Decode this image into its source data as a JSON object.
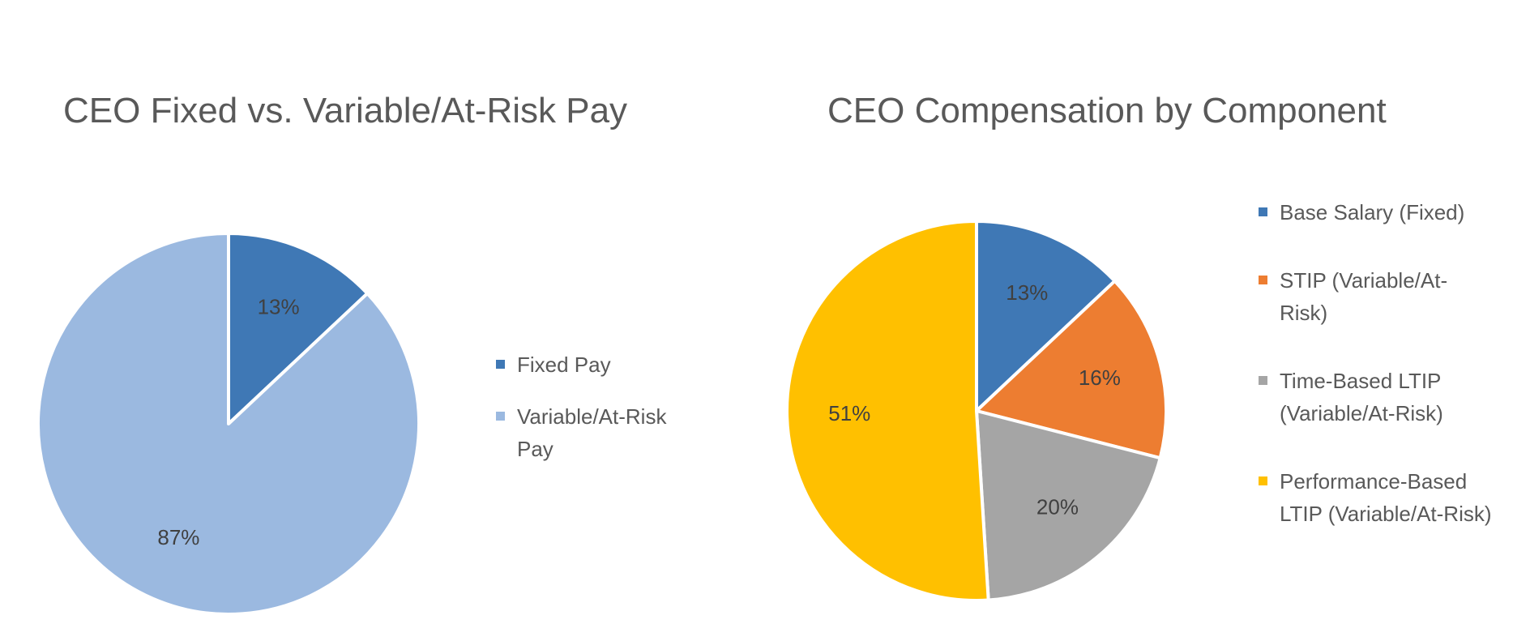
{
  "chart_data": [
    {
      "type": "pie",
      "title": "CEO Fixed vs. Variable/At-Risk Pay",
      "categories": [
        "Fixed Pay",
        "Variable/At-Risk Pay"
      ],
      "values": [
        13,
        87
      ],
      "data_labels": [
        "13%",
        "87%"
      ],
      "colors": [
        "#3f78b5",
        "#9bb9e0"
      ],
      "legend_position": "right"
    },
    {
      "type": "pie",
      "title": "CEO Compensation by Component",
      "categories": [
        "Base Salary (Fixed)",
        "STIP (Variable/At-Risk)",
        "Time-Based LTIP (Variable/At-Risk)",
        "Performance-Based LTIP (Variable/At-Risk)"
      ],
      "values": [
        13,
        16,
        20,
        51
      ],
      "data_labels": [
        "13%",
        "16%",
        "20%",
        "51%"
      ],
      "colors": [
        "#3f78b5",
        "#ed7d31",
        "#a5a5a5",
        "#ffc000"
      ],
      "legend_position": "right"
    }
  ]
}
